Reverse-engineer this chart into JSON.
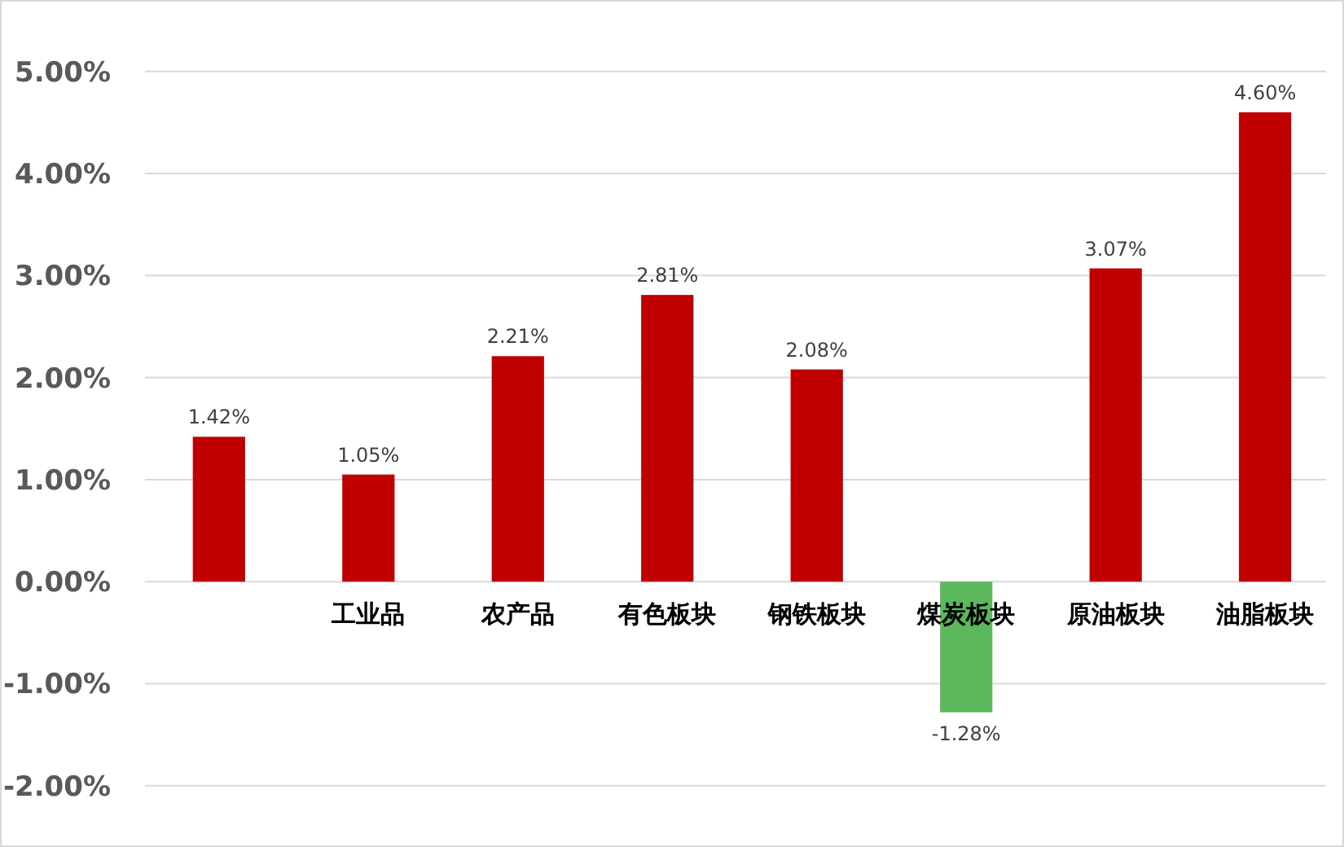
{
  "chart_data": {
    "type": "bar",
    "categories": [
      null,
      "工业品",
      "农产品",
      "有色板块",
      "钢铁板块",
      "煤炭板块",
      "原油板块",
      "油脂板块"
    ],
    "values": [
      1.42,
      1.05,
      2.21,
      2.81,
      2.08,
      -1.28,
      3.07,
      4.6
    ],
    "value_labels": [
      "1.42%",
      "1.05%",
      "2.21%",
      "2.81%",
      "2.08%",
      "-1.28%",
      "3.07%",
      "4.60%"
    ],
    "colors": [
      "#c00000",
      "#c00000",
      "#c00000",
      "#c00000",
      "#c00000",
      "#5cb85c",
      "#c00000",
      "#c00000"
    ],
    "ylim": [
      -2.6,
      5.7
    ],
    "yticks": [
      {
        "value": -2,
        "label": "-2.00%"
      },
      {
        "value": -1,
        "label": "-1.00%"
      },
      {
        "value": 0,
        "label": "0.00%"
      },
      {
        "value": 1,
        "label": "1.00%"
      },
      {
        "value": 2,
        "label": "2.00%"
      },
      {
        "value": 3,
        "label": "3.00%"
      },
      {
        "value": 4,
        "label": "4.00%"
      },
      {
        "value": 5,
        "label": "5.00%"
      }
    ],
    "grid": "y"
  }
}
